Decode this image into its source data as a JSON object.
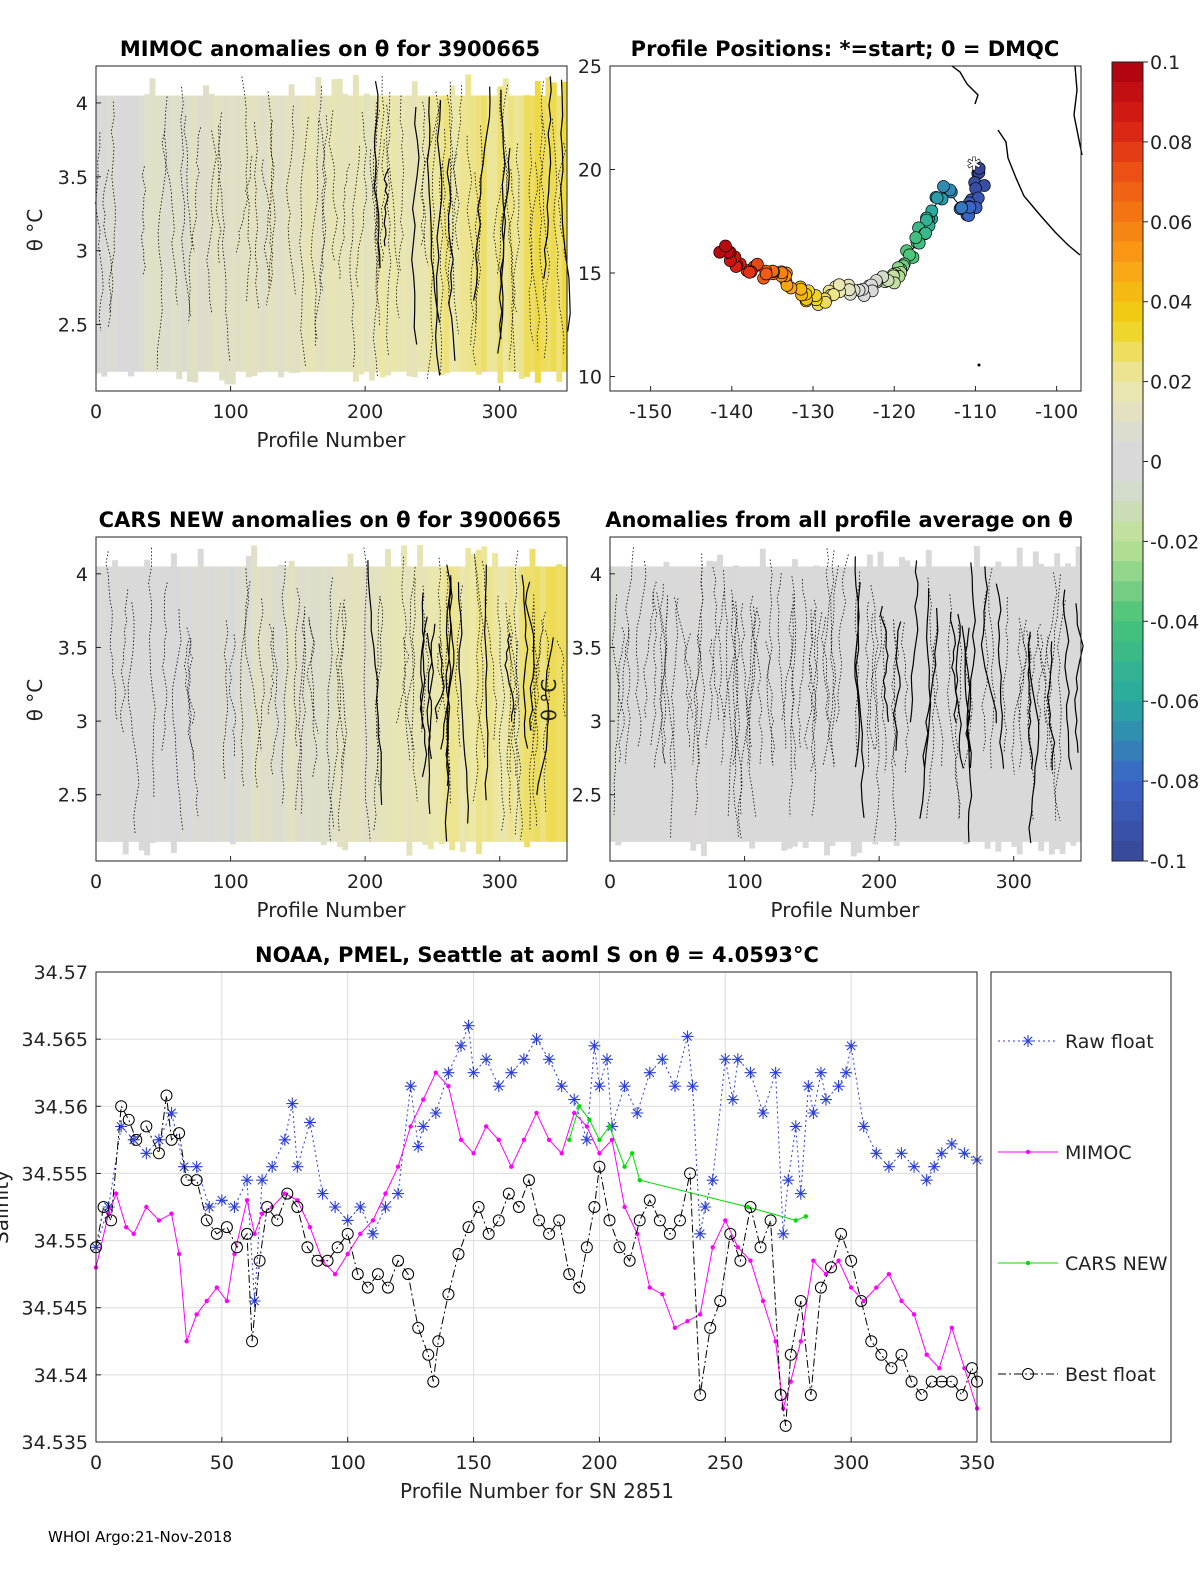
{
  "colors": {
    "raw": "#2b3fd6",
    "mimoc": "#ff00ff",
    "cars": "#00dd00",
    "best": "#000000",
    "field_gray": "#d9d9d9",
    "field_yellow": "#e9e8b0"
  },
  "footer": "WHOI Argo:21-Nov-2018",
  "chart_data": [
    {
      "id": "mimoc",
      "type": "heatmap",
      "title": "MIMOC anomalies on θ  for 3900665",
      "xlabel": "Profile Number",
      "ylabel": "θ °C",
      "xlim": [
        0,
        350
      ],
      "ylim": [
        2.05,
        4.25
      ],
      "xticks": [
        0,
        100,
        200,
        300
      ],
      "yticks": [
        2.5,
        3,
        3.5,
        4
      ],
      "ytick_labels": [
        "2.5",
        "3",
        "3.5",
        "4"
      ],
      "field_range": [
        0.004,
        0.028
      ],
      "field_trend": [
        0.004,
        0.008,
        0.01,
        0.012,
        0.014,
        0.016,
        0.018,
        0.022,
        0.024,
        0.028
      ],
      "contour_density": [
        3,
        5,
        4,
        6,
        5,
        7,
        9,
        12,
        10,
        8
      ]
    },
    {
      "id": "positions",
      "type": "scatter",
      "title": "Profile Positions: *=start; 0 = DMQC",
      "xlim": [
        -155,
        -97
      ],
      "ylim": [
        9.3,
        25
      ],
      "xticks": [
        -150,
        -140,
        -130,
        -120,
        -110,
        -100
      ],
      "yticks": [
        10,
        15,
        20,
        25
      ],
      "track_lon": [
        -109.6,
        -109.5,
        -110,
        -110.4,
        -111,
        -112,
        -113.5,
        -114.5,
        -115.5,
        -115.8,
        -116.5,
        -117.2,
        -118,
        -118.5,
        -119,
        -119.3,
        -120,
        -121,
        -122,
        -123,
        -124,
        -125,
        -126,
        -127,
        -128,
        -129,
        -130,
        -131,
        -132,
        -133,
        -133.5,
        -134.2,
        -135,
        -136,
        -137,
        -138,
        -139,
        -140,
        -141
      ],
      "track_lat": [
        20.0,
        19.2,
        18.6,
        18.3,
        18.0,
        18.3,
        19.0,
        18.6,
        17.8,
        17.5,
        17.0,
        16.6,
        15.9,
        15.5,
        15.2,
        14.9,
        14.7,
        14.6,
        14.7,
        14.3,
        14.1,
        14.0,
        14.3,
        14.3,
        13.9,
        13.6,
        13.9,
        13.8,
        14.1,
        14.5,
        15.0,
        15.2,
        15.0,
        14.9,
        15.4,
        15.2,
        15.5,
        15.8,
        16.2
      ],
      "colorbar": {
        "range": [
          -0.1,
          0.1
        ],
        "tick_values": [
          0.1,
          0.08,
          0.06,
          0.04,
          0.02,
          0,
          -0.02,
          -0.04,
          -0.06,
          -0.08,
          -0.1
        ],
        "tick_labels": [
          "0.1",
          "0.08",
          "0.06",
          "0.04",
          "0.02",
          "0",
          "-0.02",
          "-0.04",
          "-0.06",
          "-0.08",
          "-0.1"
        ]
      }
    },
    {
      "id": "cars",
      "type": "heatmap",
      "title": "CARS NEW anomalies on θ for 3900665",
      "xlabel": "Profile Number",
      "ylabel": "θ °C",
      "xlim": [
        0,
        350
      ],
      "ylim": [
        2.05,
        4.25
      ],
      "xticks": [
        0,
        100,
        200,
        300
      ],
      "yticks": [
        2.5,
        3,
        3.5,
        4
      ],
      "ytick_labels": [
        "2.5",
        "3",
        "3.5",
        "4"
      ],
      "field_range": [
        0.002,
        0.026
      ],
      "field_trend": [
        0.002,
        0.004,
        0.006,
        0.008,
        0.01,
        0.012,
        0.016,
        0.02,
        0.022,
        0.026
      ],
      "contour_density": [
        3,
        4,
        4,
        5,
        6,
        6,
        8,
        12,
        11,
        9
      ]
    },
    {
      "id": "allavg",
      "type": "heatmap",
      "title": "Anomalies from all profile average on θ",
      "xlabel": "Profile Number",
      "ylabel": "θ °C",
      "xlim": [
        0,
        350
      ],
      "ylim": [
        2.05,
        4.25
      ],
      "xticks": [
        0,
        100,
        200,
        300
      ],
      "yticks": [
        2.5,
        3,
        3.5,
        4
      ],
      "ytick_labels": [
        "2.5",
        "3",
        "3.5",
        "4"
      ],
      "field_range": [
        -0.004,
        0.004
      ],
      "field_trend": [
        -0.003,
        0.002,
        -0.002,
        0.001,
        0.0,
        -0.001,
        0.001,
        0.0,
        -0.002,
        0.001
      ],
      "contour_density": [
        8,
        9,
        9,
        10,
        9,
        10,
        9,
        10,
        9,
        10
      ]
    },
    {
      "id": "salinity",
      "type": "line",
      "title": "NOAA, PMEL, Seattle at aoml S on θ = 4.0593°C",
      "xlabel": "Profile Number for SN 2851",
      "ylabel": "Salinity",
      "xlim": [
        0,
        350
      ],
      "ylim": [
        34.535,
        34.57
      ],
      "xticks": [
        0,
        50,
        100,
        150,
        200,
        250,
        300,
        350
      ],
      "yticks": [
        34.535,
        34.54,
        34.545,
        34.55,
        34.555,
        34.56,
        34.565,
        34.57
      ],
      "ytick_labels": [
        "34.535",
        "34.54",
        "34.545",
        "34.55",
        "34.555",
        "34.56",
        "34.565",
        "34.57"
      ],
      "legend": [
        "Raw float",
        "MIMOC",
        "CARS NEW",
        "Best float"
      ],
      "series": [
        {
          "name": "Raw float",
          "x": [
            0,
            5,
            10,
            15,
            20,
            25,
            30,
            35,
            40,
            45,
            50,
            55,
            60,
            63,
            66,
            70,
            75,
            78,
            80,
            85,
            90,
            95,
            100,
            105,
            110,
            115,
            120,
            125,
            128,
            130,
            135,
            140,
            145,
            148,
            150,
            155,
            160,
            165,
            170,
            175,
            180,
            185,
            190,
            195,
            198,
            200,
            203,
            205,
            210,
            215,
            220,
            225,
            230,
            235,
            237,
            240,
            242,
            245,
            250,
            253,
            255,
            260,
            265,
            270,
            273,
            275,
            278,
            280,
            283,
            285,
            288,
            290,
            295,
            298,
            300,
            305,
            310,
            315,
            320,
            325,
            330,
            333,
            336,
            340,
            345,
            350
          ],
          "y": [
            34.5495,
            34.5525,
            34.5585,
            34.5575,
            34.5565,
            34.5575,
            34.5595,
            34.5555,
            34.5555,
            34.5525,
            34.553,
            34.5525,
            34.5545,
            34.5455,
            34.5545,
            34.5555,
            34.5575,
            34.5602,
            34.5555,
            34.5588,
            34.5535,
            34.5525,
            34.5515,
            34.5525,
            34.5505,
            34.5525,
            34.5535,
            34.5615,
            34.557,
            34.5585,
            34.5595,
            34.5625,
            34.5645,
            34.566,
            34.5625,
            34.5635,
            34.5615,
            34.5625,
            34.5635,
            34.565,
            34.5635,
            34.5615,
            34.5605,
            34.5575,
            34.5645,
            34.5615,
            34.5635,
            34.5585,
            34.5615,
            34.5595,
            34.5625,
            34.5635,
            34.5615,
            34.5652,
            34.5615,
            34.5505,
            34.5525,
            34.5545,
            34.5635,
            34.5605,
            34.5635,
            34.5625,
            34.5595,
            34.5625,
            34.5505,
            34.5545,
            34.5585,
            34.5535,
            34.5615,
            34.5595,
            34.5625,
            34.5605,
            34.5615,
            34.5625,
            34.5645,
            34.5585,
            34.5565,
            34.5555,
            34.5565,
            34.5555,
            34.5545,
            34.5555,
            34.5565,
            34.5572,
            34.5565,
            34.556
          ]
        },
        {
          "name": "MIMOC",
          "x": [
            0,
            5,
            8,
            12,
            15,
            20,
            25,
            30,
            33,
            36,
            40,
            44,
            48,
            52,
            55,
            60,
            63,
            66,
            70,
            75,
            80,
            85,
            90,
            95,
            100,
            105,
            110,
            115,
            120,
            125,
            130,
            135,
            140,
            145,
            150,
            155,
            160,
            165,
            170,
            175,
            180,
            185,
            190,
            195,
            200,
            205,
            210,
            215,
            220,
            225,
            230,
            235,
            240,
            245,
            250,
            255,
            260,
            265,
            270,
            273,
            276,
            280,
            285,
            290,
            295,
            300,
            305,
            310,
            315,
            320,
            325,
            330,
            335,
            340,
            345,
            350
          ],
          "y": [
            34.548,
            34.552,
            34.5535,
            34.551,
            34.5505,
            34.5525,
            34.5515,
            34.552,
            34.549,
            34.5425,
            34.5445,
            34.5455,
            34.5465,
            34.5455,
            34.549,
            34.553,
            34.5505,
            34.552,
            34.5525,
            34.5535,
            34.553,
            34.551,
            34.5485,
            34.5475,
            34.549,
            34.5505,
            34.5515,
            34.5535,
            34.5555,
            34.5585,
            34.5605,
            34.5625,
            34.5615,
            34.5575,
            34.5565,
            34.5585,
            34.5575,
            34.5555,
            34.5575,
            34.5595,
            34.5575,
            34.5565,
            34.5595,
            34.5585,
            34.5565,
            34.5575,
            34.5525,
            34.5505,
            34.5465,
            34.546,
            34.5435,
            34.544,
            34.5445,
            34.5495,
            34.5515,
            34.5495,
            34.5485,
            34.5455,
            34.5425,
            34.5375,
            34.5395,
            34.5425,
            34.5485,
            34.5475,
            34.5485,
            34.5465,
            34.5455,
            34.5465,
            34.5475,
            34.5455,
            34.5445,
            34.5415,
            34.5405,
            34.5435,
            34.5405,
            34.5375
          ]
        },
        {
          "name": "CARS NEW",
          "x": [
            188,
            192,
            196,
            200,
            204,
            210,
            213,
            216,
            259,
            278,
            282
          ],
          "y": [
            34.5575,
            34.56,
            34.559,
            34.5575,
            34.5585,
            34.5555,
            34.5565,
            34.5545,
            34.5525,
            34.5515,
            34.5518
          ]
        },
        {
          "name": "Best float",
          "x": [
            0,
            3,
            6,
            10,
            13,
            16,
            20,
            25,
            28,
            30,
            33,
            36,
            40,
            44,
            48,
            52,
            56,
            60,
            62,
            65,
            68,
            72,
            76,
            80,
            84,
            88,
            92,
            96,
            100,
            104,
            108,
            112,
            116,
            120,
            124,
            128,
            132,
            134,
            136,
            140,
            144,
            148,
            152,
            156,
            160,
            164,
            168,
            172,
            176,
            180,
            184,
            188,
            192,
            195,
            198,
            200,
            204,
            208,
            212,
            216,
            220,
            224,
            228,
            232,
            236,
            240,
            244,
            248,
            252,
            256,
            260,
            264,
            268,
            272,
            274,
            276,
            280,
            284,
            288,
            292,
            296,
            300,
            304,
            308,
            312,
            316,
            320,
            324,
            328,
            332,
            336,
            340,
            344,
            348,
            350
          ],
          "y": [
            34.5495,
            34.5525,
            34.5515,
            34.56,
            34.559,
            34.5575,
            34.5585,
            34.5565,
            34.5608,
            34.5575,
            34.558,
            34.5545,
            34.5545,
            34.5515,
            34.5505,
            34.551,
            34.5495,
            34.5505,
            34.5425,
            34.5485,
            34.5525,
            34.5515,
            34.5535,
            34.5525,
            34.5495,
            34.5485,
            34.5485,
            34.5495,
            34.5505,
            34.5475,
            34.5465,
            34.5475,
            34.5465,
            34.5485,
            34.5475,
            34.5435,
            34.5415,
            34.5395,
            34.5425,
            34.546,
            34.549,
            34.551,
            34.5525,
            34.5505,
            34.5515,
            34.5535,
            34.5525,
            34.5545,
            34.5515,
            34.5505,
            34.5515,
            34.5475,
            34.5465,
            34.5495,
            34.5525,
            34.5555,
            34.5515,
            34.5495,
            34.5485,
            34.5515,
            34.553,
            34.5515,
            34.5505,
            34.5515,
            34.555,
            34.5385,
            34.5435,
            34.5455,
            34.5505,
            34.5485,
            34.5525,
            34.5495,
            34.5515,
            34.5385,
            34.5362,
            34.5415,
            34.5455,
            34.5385,
            34.5465,
            34.548,
            34.5505,
            34.5485,
            34.5455,
            34.5425,
            34.5415,
            34.5405,
            34.5415,
            34.5395,
            34.5385,
            34.5395,
            34.5395,
            34.5395,
            34.5385,
            34.5405,
            34.5395
          ]
        }
      ]
    }
  ]
}
